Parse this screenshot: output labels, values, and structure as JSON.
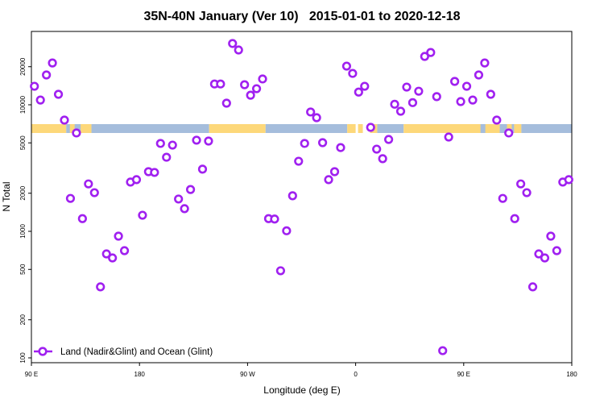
{
  "chart_data": {
    "type": "scatter",
    "title": "35N-40N January (Ver 10)   2015-01-01 to 2020-12-18",
    "xlabel": "Longitude (deg E)",
    "ylabel": "N Total",
    "xlim": [
      90,
      540
    ],
    "ylim_log": [
      100,
      30000
    ],
    "yscale": "log",
    "xticks": [
      {
        "value": 90,
        "label": "90 E"
      },
      {
        "value": 180,
        "label": "180"
      },
      {
        "value": 270,
        "label": "90 W"
      },
      {
        "value": 360,
        "label": "0"
      },
      {
        "value": 450,
        "label": "90 E"
      },
      {
        "value": 540,
        "label": "180"
      }
    ],
    "yticks": [
      {
        "value": 100,
        "label": "100"
      },
      {
        "value": 200,
        "label": "200"
      },
      {
        "value": 500,
        "label": "500"
      },
      {
        "value": 1000,
        "label": "1000"
      },
      {
        "value": 2000,
        "label": "2000"
      },
      {
        "value": 5000,
        "label": "5000"
      },
      {
        "value": 10000,
        "label": "10000"
      },
      {
        "value": 20000,
        "label": "20000"
      }
    ],
    "legend": {
      "label": "Land (Nadir&Glint) and Ocean (Glint)",
      "placement": "bottom-left"
    },
    "colors": {
      "marker": "#A020F0",
      "land": "#FDD87A",
      "ocean": "#A5BDDC"
    },
    "series": [
      {
        "name": "Land (Nadir&Glint) and Ocean (Glint)",
        "x_start": 92.5,
        "x_step": 5,
        "values": [
          14000,
          10900,
          17200,
          21400,
          12100,
          7570,
          1820,
          5990,
          1260,
          2370,
          2020,
          364,
          663,
          616,
          916,
          703,
          2450,
          2560,
          1340,
          2960,
          2920,
          4950,
          3850,
          4800,
          1800,
          1510,
          2140,
          5250,
          3100,
          5170,
          14600,
          14600,
          10300,
          30500,
          27100,
          14400,
          11900,
          13400,
          16000,
          1260,
          1250,
          488,
          1010,
          1910,
          3580,
          4950,
          8770,
          7910,
          5020,
          2560,
          2960,
          4590,
          20200,
          17700,
          12600,
          14000,
          6630,
          4460,
          3750,
          5320,
          10100,
          8890,
          13800,
          10400,
          12800,
          24100,
          25900,
          11600,
          114,
          5560,
          15300,
          10600,
          14000,
          10900,
          17200,
          21400,
          12100,
          7570,
          1820,
          5990,
          1260,
          2370,
          2020,
          364,
          663,
          616,
          916,
          703,
          2450,
          2560
        ]
      }
    ]
  }
}
